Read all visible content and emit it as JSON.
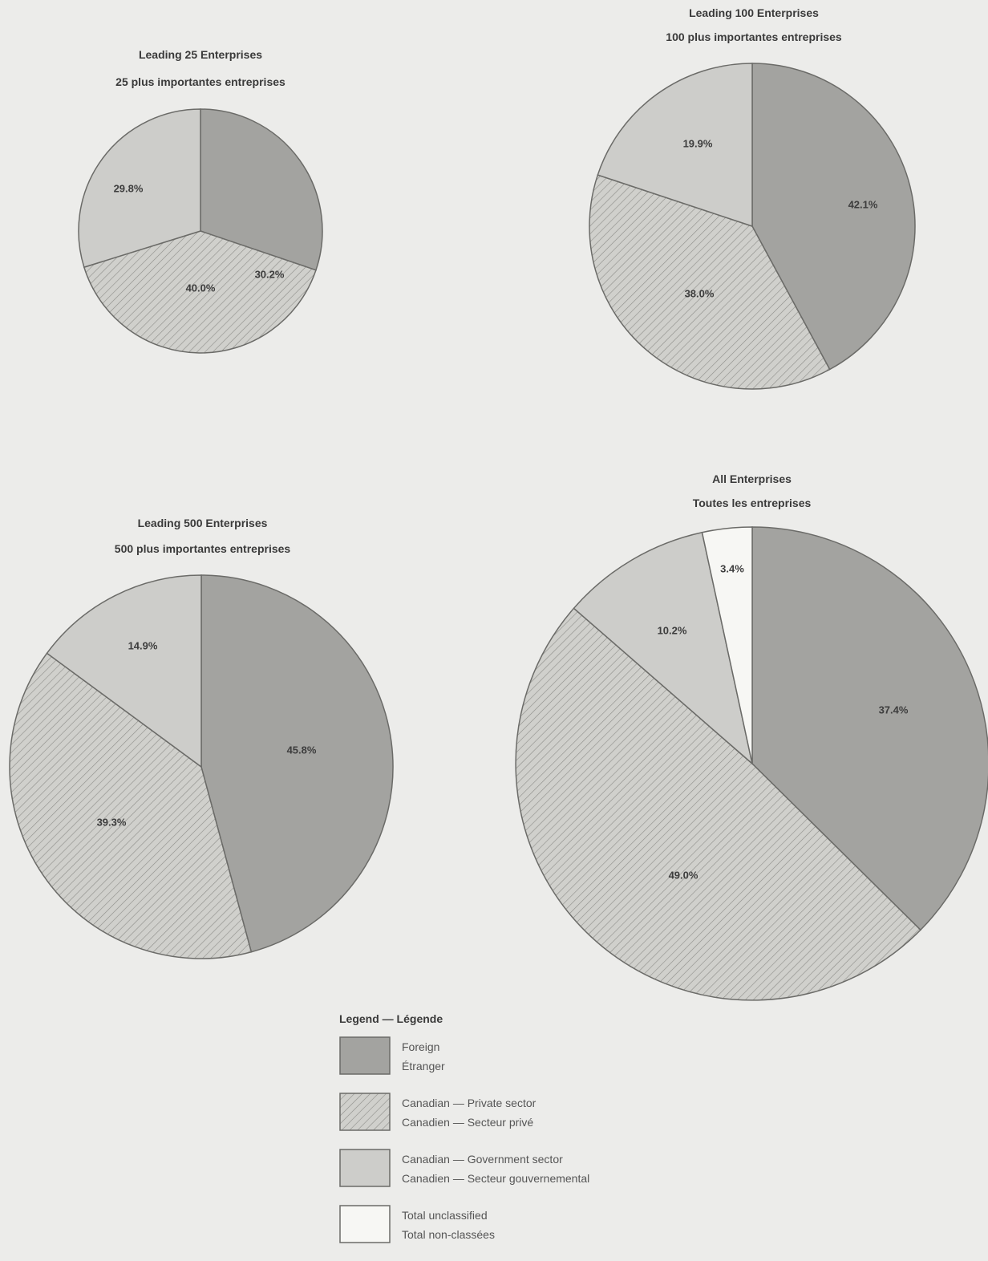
{
  "colors": {
    "foreign": "#a3a3a0",
    "private": "#d0d0cc",
    "private_hatch": "#8d8d89",
    "government": "#cdcdca",
    "unclassified": "#f7f7f4",
    "stroke": "#6b6b68"
  },
  "chart_data": [
    {
      "type": "pie",
      "title": "Leading 25 Enterprises",
      "subtitle": "25 plus importantes entreprises",
      "slices": [
        {
          "category": "foreign",
          "value": 30.2,
          "label": "30.2%"
        },
        {
          "category": "private",
          "value": 40.0,
          "label": "40.0%"
        },
        {
          "category": "government",
          "value": 29.8,
          "label": "29.8%"
        }
      ]
    },
    {
      "type": "pie",
      "title": "Leading 100 Enterprises",
      "subtitle": "100 plus importantes entreprises",
      "slices": [
        {
          "category": "foreign",
          "value": 42.1,
          "label": "42.1%"
        },
        {
          "category": "private",
          "value": 38.0,
          "label": "38.0%"
        },
        {
          "category": "government",
          "value": 19.9,
          "label": "19.9%"
        }
      ]
    },
    {
      "type": "pie",
      "title": "Leading 500 Enterprises",
      "subtitle": "500 plus importantes entreprises",
      "slices": [
        {
          "category": "foreign",
          "value": 45.8,
          "label": "45.8%"
        },
        {
          "category": "private",
          "value": 39.3,
          "label": "39.3%"
        },
        {
          "category": "government",
          "value": 14.9,
          "label": "14.9%"
        }
      ]
    },
    {
      "type": "pie",
      "title": "All Enterprises",
      "subtitle": "Toutes les entreprises",
      "slices": [
        {
          "category": "foreign",
          "value": 37.4,
          "label": "37.4%"
        },
        {
          "category": "private",
          "value": 49.0,
          "label": "49.0%"
        },
        {
          "category": "government",
          "value": 10.2,
          "label": "10.2%"
        },
        {
          "category": "unclassified",
          "value": 3.4,
          "label": "3.4%"
        }
      ]
    }
  ],
  "legend": {
    "title": "Legend — Légende",
    "items": [
      {
        "category": "foreign",
        "line1": "Foreign",
        "line2": "Étranger"
      },
      {
        "category": "private",
        "line1": "Canadian — Private sector",
        "line2": "Canadien — Secteur privé"
      },
      {
        "category": "government",
        "line1": "Canadian — Government sector",
        "line2": "Canadien — Secteur gouvernemental"
      },
      {
        "category": "unclassified",
        "line1": "Total unclassified",
        "line2": "Total non-classées"
      }
    ]
  }
}
